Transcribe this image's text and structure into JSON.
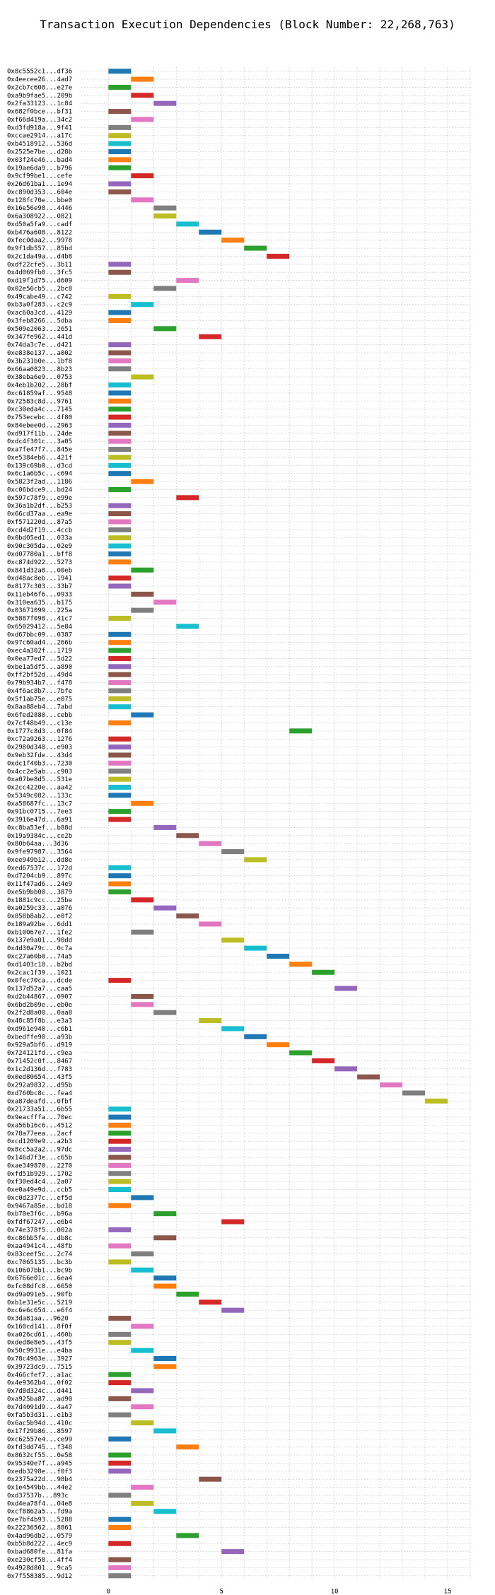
{
  "chart_data": {
    "type": "gantt",
    "title": "Transaction Execution Dependencies (Block Number: 22,268,763)",
    "xlim": [
      -1.2,
      16
    ],
    "xticks": [
      0,
      5,
      10,
      15
    ],
    "grid": true,
    "colors": [
      "#1f77b4",
      "#ff7f0e",
      "#2ca02c",
      "#d62728",
      "#9467bd",
      "#8c564b",
      "#e377c2",
      "#7f7f7f",
      "#bcbd22",
      "#17becf"
    ],
    "transactions": [
      {
        "label": "0x8c5552c1...df36",
        "start": 0
      },
      {
        "label": "0x4eecee26...4ad7",
        "start": 1
      },
      {
        "label": "0x2cb7c608...e27e",
        "start": 0
      },
      {
        "label": "0xa9b9fae5...209b",
        "start": 1
      },
      {
        "label": "0x2fa33123...1c84",
        "start": 2
      },
      {
        "label": "0x682f0bce...bf31",
        "start": 0
      },
      {
        "label": "0xf66d419a...34c2",
        "start": 1
      },
      {
        "label": "0xd3fd918a...9f41",
        "start": 0
      },
      {
        "label": "0xccae2914...a17c",
        "start": 0
      },
      {
        "label": "0xb4518912...536d",
        "start": 0
      },
      {
        "label": "0x2525e7be...d28b",
        "start": 0
      },
      {
        "label": "0x03f24e46...bad4",
        "start": 0
      },
      {
        "label": "0x19ae6da9...b796",
        "start": 0
      },
      {
        "label": "0x9cf99be1...cefe",
        "start": 1
      },
      {
        "label": "0x26d61ba1...1e94",
        "start": 0
      },
      {
        "label": "0xc890d353...604e",
        "start": 0
      },
      {
        "label": "0x128fc70e...bbe0",
        "start": 1
      },
      {
        "label": "0x16e56e98...4446",
        "start": 2
      },
      {
        "label": "0x6a308922...0821",
        "start": 2
      },
      {
        "label": "0xd50a5fa9...cadf",
        "start": 3
      },
      {
        "label": "0xb476a608...8122",
        "start": 4
      },
      {
        "label": "0xfec0daa2...9978",
        "start": 5
      },
      {
        "label": "0x9f1db557...85bd",
        "start": 6
      },
      {
        "label": "0x2c1da49a...d4b8",
        "start": 7
      },
      {
        "label": "0xdf22cfe5...3b11",
        "start": 0
      },
      {
        "label": "0x4d069fb0...3fc5",
        "start": 0
      },
      {
        "label": "0xd19f1d75...d609",
        "start": 3
      },
      {
        "label": "0x02e56cb5...2bc8",
        "start": 2
      },
      {
        "label": "0x49cabe49...c742",
        "start": 0
      },
      {
        "label": "0xb3a0f283...c2c9",
        "start": 1
      },
      {
        "label": "0xac60a3cd...4129",
        "start": 0
      },
      {
        "label": "0x3feb8266...5dba",
        "start": 0
      },
      {
        "label": "0x509e2063...2651",
        "start": 2
      },
      {
        "label": "0x347fe962...441d",
        "start": 4
      },
      {
        "label": "0x74da3c7e...d421",
        "start": 0
      },
      {
        "label": "0xe838e137...a002",
        "start": 0
      },
      {
        "label": "0x3b231b0e...1bf8",
        "start": 0
      },
      {
        "label": "0x66aa0823...8b23",
        "start": 0
      },
      {
        "label": "0x38eba6e9...0753",
        "start": 1
      },
      {
        "label": "0x4eb1b202...28bf",
        "start": 0
      },
      {
        "label": "0xc61859af...9548",
        "start": 0
      },
      {
        "label": "0x72583c8d...9761",
        "start": 0
      },
      {
        "label": "0xc30eda4c...7145",
        "start": 0
      },
      {
        "label": "0x753ecebc...4f80",
        "start": 0
      },
      {
        "label": "0x84ebee0d...2963",
        "start": 0
      },
      {
        "label": "0xd917f11b...24de",
        "start": 0
      },
      {
        "label": "0xdc4f301c...3a05",
        "start": 0
      },
      {
        "label": "0xa7fe47f7...845e",
        "start": 0
      },
      {
        "label": "0xe5384eb6...421f",
        "start": 0
      },
      {
        "label": "0x139c69b0...d3cd",
        "start": 0
      },
      {
        "label": "0x6c1a6b5c...c694",
        "start": 0
      },
      {
        "label": "0x5823f2ad...1186",
        "start": 1
      },
      {
        "label": "0xc06bdce9...bd24",
        "start": 0
      },
      {
        "label": "0x597c78f9...e99e",
        "start": 3
      },
      {
        "label": "0x36a1b2df...b253",
        "start": 0
      },
      {
        "label": "0x66cd37aa...ea9e",
        "start": 0
      },
      {
        "label": "0xf571220d...87a5",
        "start": 0
      },
      {
        "label": "0xcd4d2f19...4ccb",
        "start": 0
      },
      {
        "label": "0x0bd05ed1...033a",
        "start": 0
      },
      {
        "label": "0x90c305da...02e9",
        "start": 0
      },
      {
        "label": "0xd07780a1...bff8",
        "start": 0
      },
      {
        "label": "0xc874d922...5273",
        "start": 0
      },
      {
        "label": "0x841d32a8...00eb",
        "start": 1
      },
      {
        "label": "0xd48ac8eb...1941",
        "start": 0
      },
      {
        "label": "0x8177c303...33b7",
        "start": 0
      },
      {
        "label": "0x11eb46f6...0933",
        "start": 1
      },
      {
        "label": "0x310ea635...b175",
        "start": 2
      },
      {
        "label": "0x03671099...225a",
        "start": 1
      },
      {
        "label": "0x5887f098...41c7",
        "start": 0
      },
      {
        "label": "0x65029412...5e84",
        "start": 3
      },
      {
        "label": "0xd67bbc09...0387",
        "start": 0
      },
      {
        "label": "0x97c60ad4...266b",
        "start": 0
      },
      {
        "label": "0xec4a302f...1719",
        "start": 0
      },
      {
        "label": "0x0ea77ed7...5d22",
        "start": 0
      },
      {
        "label": "0xbe1a5df5...a890",
        "start": 0
      },
      {
        "label": "0xff2bf52d...49d4",
        "start": 0
      },
      {
        "label": "0x79b934b7...f478",
        "start": 0
      },
      {
        "label": "0x4f6ac8b7...7bfe",
        "start": 0
      },
      {
        "label": "0x5f1ab75e...e075",
        "start": 0
      },
      {
        "label": "0x8aa88eb4...7abd",
        "start": 0
      },
      {
        "label": "0x6fed2880...cebb",
        "start": 1
      },
      {
        "label": "0x7cf48b49...c13e",
        "start": 0
      },
      {
        "label": "0x1777c8d3...0f84",
        "start": 8
      },
      {
        "label": "0xc72a9263...1276",
        "start": 0
      },
      {
        "label": "0x2980d340...e903",
        "start": 0
      },
      {
        "label": "0x9eb32fde...43d4",
        "start": 0
      },
      {
        "label": "0xdc1f40b3...7230",
        "start": 0
      },
      {
        "label": "0x4cc2e5ab...c903",
        "start": 0
      },
      {
        "label": "0xa07be8d5...531e",
        "start": 0
      },
      {
        "label": "0x2cc4220e...aa42",
        "start": 0
      },
      {
        "label": "0x5349c082...133c",
        "start": 0
      },
      {
        "label": "0xa58687fc...13c7",
        "start": 1
      },
      {
        "label": "0x91bc0715...7ee3",
        "start": 0
      },
      {
        "label": "0x3916e47d...6a91",
        "start": 0
      },
      {
        "label": "0xc8ba53ef...b88d",
        "start": 2
      },
      {
        "label": "0x19a9384c...ce2b",
        "start": 3
      },
      {
        "label": "0x80b64aa...3d36",
        "start": 4
      },
      {
        "label": "0x9fe97987...3564",
        "start": 5
      },
      {
        "label": "0xee949b12...dd8e",
        "start": 6
      },
      {
        "label": "0xed67537c...172d",
        "start": 0
      },
      {
        "label": "0xd7204cb9...897c",
        "start": 0
      },
      {
        "label": "0x11f47ad6...24e9",
        "start": 0
      },
      {
        "label": "0xe5b9bb00...3879",
        "start": 0
      },
      {
        "label": "0x1881c9cc...25be",
        "start": 1
      },
      {
        "label": "0xa0259c33...a076",
        "start": 2
      },
      {
        "label": "0x858b8ab2...e0f2",
        "start": 3
      },
      {
        "label": "0x189a92be...6dd1",
        "start": 4
      },
      {
        "label": "0xb10067e7...1fe2",
        "start": 1
      },
      {
        "label": "0x137e9a01...90dd",
        "start": 5
      },
      {
        "label": "0x4d30a79c...0c7a",
        "start": 6
      },
      {
        "label": "0xc27a60b0...74a5",
        "start": 7
      },
      {
        "label": "0xd1403c18...b2bd",
        "start": 8
      },
      {
        "label": "0x2cac1f39...1021",
        "start": 9
      },
      {
        "label": "0x0fec70ca...dcde",
        "start": 0
      },
      {
        "label": "0x137d52a7...caa5",
        "start": 10
      },
      {
        "label": "0xd2b44867...0907",
        "start": 1
      },
      {
        "label": "0x6bd2b09e...eb0e",
        "start": 1
      },
      {
        "label": "0x2f2d8a00...0aa8",
        "start": 2
      },
      {
        "label": "0x48c85f8b...e3a3",
        "start": 4
      },
      {
        "label": "0xd961e940...c6b1",
        "start": 5
      },
      {
        "label": "0xbedffe90...a93b",
        "start": 6
      },
      {
        "label": "0x929a5bf6...d919",
        "start": 7
      },
      {
        "label": "0x724121fd...c9ea",
        "start": 8
      },
      {
        "label": "0x71452c0f...8467",
        "start": 9
      },
      {
        "label": "0x1c2d136d...f783",
        "start": 10
      },
      {
        "label": "0x0ed80654...43f5",
        "start": 11
      },
      {
        "label": "0x292a9832...d95b",
        "start": 12
      },
      {
        "label": "0xd760bc8c...fea4",
        "start": 13
      },
      {
        "label": "0xa87deafd...0fbf",
        "start": 14
      },
      {
        "label": "0x21733a51...6b55",
        "start": 0
      },
      {
        "label": "0x9eacfffa...70ec",
        "start": 0
      },
      {
        "label": "0xa56b16c6...4512",
        "start": 0
      },
      {
        "label": "0x78a77eea...2acf",
        "start": 0
      },
      {
        "label": "0xcd1209e9...a2b3",
        "start": 0
      },
      {
        "label": "0x8cc5a2a2...97dc",
        "start": 0
      },
      {
        "label": "0x146d7f3e...c65b",
        "start": 0
      },
      {
        "label": "0xae349870...2270",
        "start": 0
      },
      {
        "label": "0xfd51b929...1702",
        "start": 0
      },
      {
        "label": "0xf30ed4c4...2a07",
        "start": 0
      },
      {
        "label": "0xe0a49e9d...ccb5",
        "start": 0
      },
      {
        "label": "0xc0d2377c...ef5d",
        "start": 1
      },
      {
        "label": "0x9467a85e...bd18",
        "start": 0
      },
      {
        "label": "0xb70e3f6c...b96a",
        "start": 2
      },
      {
        "label": "0xfdf67247...e6b4",
        "start": 5
      },
      {
        "label": "0x74e378f5...002a",
        "start": 0
      },
      {
        "label": "0xc86bb5fe...db8c",
        "start": 2
      },
      {
        "label": "0xaa4941c4...48fb",
        "start": 0
      },
      {
        "label": "0x83ceef5c...2c74",
        "start": 1
      },
      {
        "label": "0xc7065135...bc3b",
        "start": 0
      },
      {
        "label": "0x10607bb1...bc9b",
        "start": 1
      },
      {
        "label": "0x6766e01c...6ea4",
        "start": 2
      },
      {
        "label": "0xfc08dfc8...6650",
        "start": 2
      },
      {
        "label": "0xd9a091e5...90fb",
        "start": 3
      },
      {
        "label": "0xb1e31e5c...5219",
        "start": 4
      },
      {
        "label": "0xc6e6c654...e6f4",
        "start": 5
      },
      {
        "label": "0x3da81aa...9620",
        "start": 0
      },
      {
        "label": "0x160cd141...8f0f",
        "start": 1
      },
      {
        "label": "0xa026cd61...460b",
        "start": 0
      },
      {
        "label": "0xded8e8e5...43f5",
        "start": 0
      },
      {
        "label": "0x50c9931e...e4ba",
        "start": 1
      },
      {
        "label": "0x78c4963e...3927",
        "start": 2
      },
      {
        "label": "0x39723dc9...7515",
        "start": 2
      },
      {
        "label": "0x466cfef7...a1ac",
        "start": 0
      },
      {
        "label": "0x4e9362b4...0f02",
        "start": 0
      },
      {
        "label": "0x7d8d324c...d441",
        "start": 1
      },
      {
        "label": "0xa925ba87...ad90",
        "start": 0
      },
      {
        "label": "0x7d4091d9...4a47",
        "start": 1
      },
      {
        "label": "0xfa5b3d31...e1b3",
        "start": 0
      },
      {
        "label": "0x6ac5b94d...410c",
        "start": 1
      },
      {
        "label": "0x17f29b86...8597",
        "start": 2
      },
      {
        "label": "0xc62557e4...ce99",
        "start": 0
      },
      {
        "label": "0xfd3dd745...f348",
        "start": 3
      },
      {
        "label": "0x8632cf55...0e58",
        "start": 0
      },
      {
        "label": "0x95340e7f...a945",
        "start": 0
      },
      {
        "label": "0xedb3298e...f0f3",
        "start": 0
      },
      {
        "label": "0x2375a22d...98b4",
        "start": 4
      },
      {
        "label": "0x1e4549bb...44e2",
        "start": 1
      },
      {
        "label": "0xd37537b...893c",
        "start": 0
      },
      {
        "label": "0xd4ea78f4...04e8",
        "start": 1
      },
      {
        "label": "0xcf8862a5...fd9a",
        "start": 2
      },
      {
        "label": "0xe7bf4b93...5288",
        "start": 0
      },
      {
        "label": "0x22236562...8861",
        "start": 0
      },
      {
        "label": "0x4ad96db2...0579",
        "start": 3
      },
      {
        "label": "0xb5b8d222...4ec9",
        "start": 0
      },
      {
        "label": "0xbad680fe...81fa",
        "start": 5
      },
      {
        "label": "0xe230cf58...4ff4",
        "start": 0
      },
      {
        "label": "0x4928d801...9ca5",
        "start": 0
      },
      {
        "label": "0x7f558385...9d12",
        "start": 0
      }
    ]
  }
}
